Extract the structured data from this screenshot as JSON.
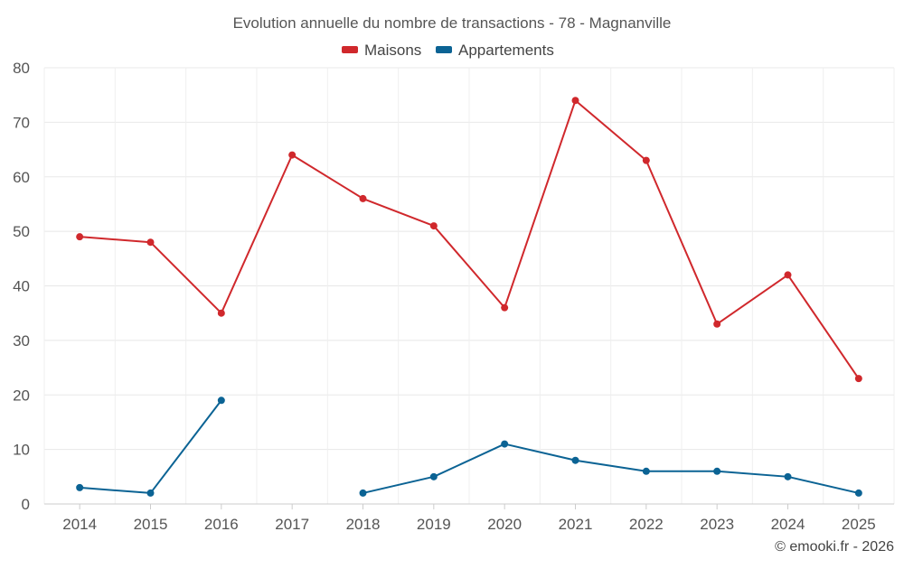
{
  "chart_data": {
    "type": "line",
    "title": "Evolution annuelle du nombre de transactions - 78 - Magnanville",
    "categories": [
      "2014",
      "2015",
      "2016",
      "2017",
      "2018",
      "2019",
      "2020",
      "2021",
      "2022",
      "2023",
      "2024",
      "2025"
    ],
    "series": [
      {
        "name": "Maisons",
        "color": "#d0282c",
        "values": [
          49,
          48,
          35,
          64,
          56,
          51,
          36,
          74,
          63,
          33,
          42,
          23
        ]
      },
      {
        "name": "Appartements",
        "color": "#0b6394",
        "values": [
          3,
          2,
          19,
          null,
          2,
          5,
          11,
          8,
          6,
          6,
          5,
          2
        ]
      }
    ],
    "ylim": [
      0,
      80
    ],
    "yticks": [
      0,
      10,
      20,
      30,
      40,
      50,
      60,
      70,
      80
    ],
    "xlabel": "",
    "ylabel": "",
    "grid": true,
    "legend": "top-center",
    "credit": "© emooki.fr - 2026"
  }
}
